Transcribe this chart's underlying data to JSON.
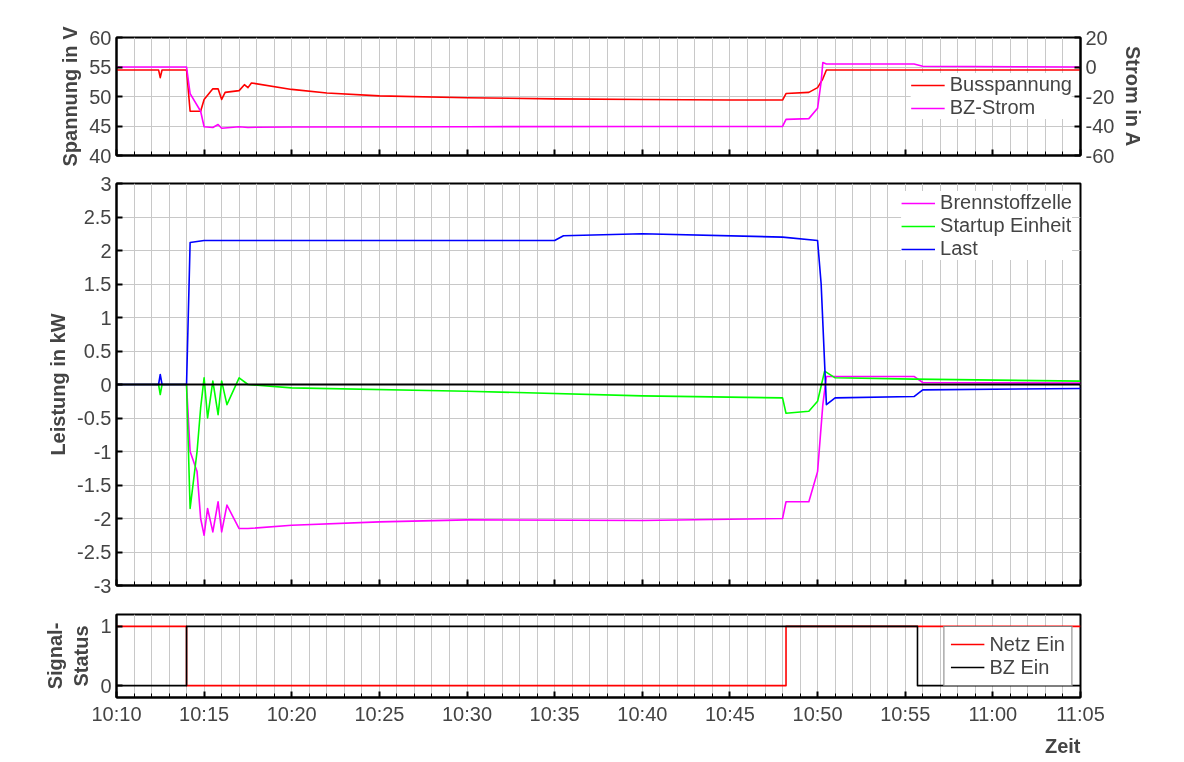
{
  "chart_data": [
    {
      "type": "line",
      "ylabel": "Spannung in V",
      "y2label": "Strom in A",
      "xlim": [
        10.1667,
        11.0833
      ],
      "xticks": [
        {
          "value": 10.1667,
          "label": null
        },
        {
          "value": 10.25,
          "label": null
        },
        {
          "value": 10.3333,
          "label": null
        },
        {
          "value": 10.4167,
          "label": null
        },
        {
          "value": 10.5,
          "label": null
        },
        {
          "value": 10.5833,
          "label": null
        },
        {
          "value": 10.6667,
          "label": null
        },
        {
          "value": 10.75,
          "label": null
        },
        {
          "value": 10.8333,
          "label": null
        },
        {
          "value": 10.9167,
          "label": null
        },
        {
          "value": 11.0,
          "label": null
        },
        {
          "value": 11.0833,
          "label": null
        }
      ],
      "ylim": [
        40,
        60
      ],
      "yticks": [
        40,
        45,
        50,
        55,
        60
      ],
      "y2lim": [
        -60,
        20
      ],
      "y2ticks": [
        -60,
        -40,
        -20,
        0,
        20
      ],
      "tick_labels": "y",
      "grid": true,
      "legend": "right",
      "series": [
        {
          "name": "Busspannung",
          "color": "#ff0000",
          "x": [
            10.1667,
            10.2067,
            10.2083,
            10.21,
            10.2333,
            10.2367,
            10.2467,
            10.25,
            10.2583,
            10.2633,
            10.2667,
            10.27,
            10.2833,
            10.2883,
            10.2917,
            10.295,
            10.3333,
            10.3667,
            10.4167,
            10.5,
            10.5833,
            10.6667,
            10.75,
            10.8,
            10.8033,
            10.825,
            10.8333,
            10.8383,
            10.8417,
            11.0833
          ],
          "values": [
            54.5,
            54.5,
            53.2,
            54.5,
            54.5,
            47.5,
            47.5,
            49.5,
            51.3,
            51.3,
            49.5,
            50.7,
            51,
            52,
            51.5,
            52.3,
            51.2,
            50.6,
            50.1,
            49.8,
            49.6,
            49.5,
            49.4,
            49.4,
            50.5,
            50.7,
            51.5,
            53,
            54.5,
            54.5
          ]
        },
        {
          "name": "BZ-Strom",
          "color": "#ff00ff",
          "axis": "y2",
          "x": [
            10.1667,
            10.2333,
            10.2367,
            10.2467,
            10.25,
            10.2583,
            10.2633,
            10.2667,
            10.2833,
            10.2917,
            10.3,
            10.3333,
            10.5,
            10.6667,
            10.8,
            10.8033,
            10.825,
            10.8333,
            10.8367,
            10.8383,
            10.8417,
            10.925,
            10.9333,
            11.0833
          ],
          "values": [
            0,
            0,
            -18,
            -30,
            -40.5,
            -41,
            -39,
            -41.5,
            -40.5,
            -41,
            -40.8,
            -40.7,
            -40.5,
            -40.3,
            -40.3,
            -35.5,
            -35,
            -28,
            -10,
            3,
            2,
            2,
            0.5,
            0
          ]
        }
      ]
    },
    {
      "type": "line",
      "ylabel": "Leistung in kW",
      "xlim": [
        10.1667,
        11.0833
      ],
      "xticks": [
        {
          "value": 10.1667,
          "label": null
        },
        {
          "value": 10.25,
          "label": null
        },
        {
          "value": 10.3333,
          "label": null
        },
        {
          "value": 10.4167,
          "label": null
        },
        {
          "value": 10.5,
          "label": null
        },
        {
          "value": 10.5833,
          "label": null
        },
        {
          "value": 10.6667,
          "label": null
        },
        {
          "value": 10.75,
          "label": null
        },
        {
          "value": 10.8333,
          "label": null
        },
        {
          "value": 10.9167,
          "label": null
        },
        {
          "value": 11.0,
          "label": null
        },
        {
          "value": 11.0833,
          "label": null
        }
      ],
      "ylim": [
        -3,
        3
      ],
      "yticks": [
        -3,
        -2.5,
        -2,
        -1.5,
        -1,
        -0.5,
        0,
        0.5,
        1,
        1.5,
        2,
        2.5,
        3
      ],
      "tick_labels": "y",
      "grid": true,
      "legend": "top right",
      "ref_lines": [
        {
          "axis": "y",
          "value": 0,
          "label": null,
          "color": "#000000"
        }
      ],
      "series": [
        {
          "name": "Brennstoffzelle",
          "color": "#ff00ff",
          "x": [
            10.1667,
            10.2333,
            10.2367,
            10.2433,
            10.2467,
            10.25,
            10.2533,
            10.2583,
            10.2633,
            10.2667,
            10.2717,
            10.2833,
            10.2917,
            10.3333,
            10.4167,
            10.5,
            10.6667,
            10.8,
            10.8033,
            10.825,
            10.8333,
            10.8383,
            10.8417,
            10.925,
            10.9333,
            11.0833
          ],
          "values": [
            0,
            0,
            -1.0,
            -1.3,
            -2.0,
            -2.25,
            -1.85,
            -2.2,
            -1.75,
            -2.2,
            -1.8,
            -2.15,
            -2.15,
            -2.1,
            -2.05,
            -2.02,
            -2.03,
            -2.0,
            -1.75,
            -1.75,
            -1.3,
            -0.3,
            0.12,
            0.12,
            0.03,
            0.02
          ]
        },
        {
          "name": "Startup Einheit",
          "color": "#00ff00",
          "x": [
            10.1667,
            10.2067,
            10.2083,
            10.21,
            10.2333,
            10.2367,
            10.2433,
            10.2467,
            10.25,
            10.2533,
            10.2583,
            10.2633,
            10.2667,
            10.2717,
            10.2833,
            10.2917,
            10.3333,
            10.5,
            10.6667,
            10.8,
            10.8033,
            10.825,
            10.8333,
            10.84,
            10.85,
            10.925,
            11.0833
          ],
          "values": [
            0,
            0,
            -0.15,
            0,
            0,
            -1.85,
            -1.0,
            -0.35,
            0.1,
            -0.5,
            0.05,
            -0.45,
            0.05,
            -0.3,
            0.1,
            0.0,
            -0.05,
            -0.1,
            -0.17,
            -0.2,
            -0.43,
            -0.4,
            -0.25,
            0.2,
            0.1,
            0.08,
            0.05
          ]
        },
        {
          "name": "Last",
          "color": "#0000ff",
          "x": [
            10.1667,
            10.2067,
            10.2083,
            10.21,
            10.2333,
            10.2367,
            10.25,
            10.3333,
            10.5,
            10.5833,
            10.5917,
            10.6667,
            10.8,
            10.8333,
            10.8367,
            10.8417,
            10.85,
            10.925,
            10.9333,
            11.0833
          ],
          "values": [
            0,
            0,
            0.15,
            0,
            0,
            2.12,
            2.15,
            2.15,
            2.15,
            2.15,
            2.22,
            2.25,
            2.2,
            2.15,
            1.5,
            -0.3,
            -0.2,
            -0.18,
            -0.08,
            -0.06
          ]
        }
      ]
    },
    {
      "type": "line",
      "ylabel": "Signal-\nStatus",
      "xlabel": "Zeit",
      "xlim": [
        10.1667,
        11.0833
      ],
      "xticks": [
        {
          "value": 10.1667,
          "label": "10:10"
        },
        {
          "value": 10.25,
          "label": "10:15"
        },
        {
          "value": 10.3333,
          "label": "10:20"
        },
        {
          "value": 10.4167,
          "label": "10:25"
        },
        {
          "value": 10.5,
          "label": "10:30"
        },
        {
          "value": 10.5833,
          "label": "10:35"
        },
        {
          "value": 10.6667,
          "label": "10:40"
        },
        {
          "value": 10.75,
          "label": "10:45"
        },
        {
          "value": 10.8333,
          "label": "10:50"
        },
        {
          "value": 10.9167,
          "label": "10:55"
        },
        {
          "value": 11.0,
          "label": "11:00"
        },
        {
          "value": 11.0833,
          "label": "11:05"
        }
      ],
      "ylim": [
        -0.2,
        1.2
      ],
      "yticks": [
        0,
        1
      ],
      "grid": "x",
      "legend": "right",
      "series": [
        {
          "name": "Netz Ein",
          "color": "#ff0000",
          "x": [
            10.1667,
            10.2333,
            10.2333,
            10.8033,
            10.8033,
            11.0833
          ],
          "values": [
            1,
            1,
            0,
            0,
            1,
            1
          ]
        },
        {
          "name": "BZ Ein",
          "color": "#000000",
          "x": [
            10.1667,
            10.2333,
            10.2333,
            10.9283,
            10.9283,
            11.0833
          ],
          "values": [
            0,
            0,
            1,
            1,
            0,
            0
          ]
        }
      ]
    }
  ]
}
